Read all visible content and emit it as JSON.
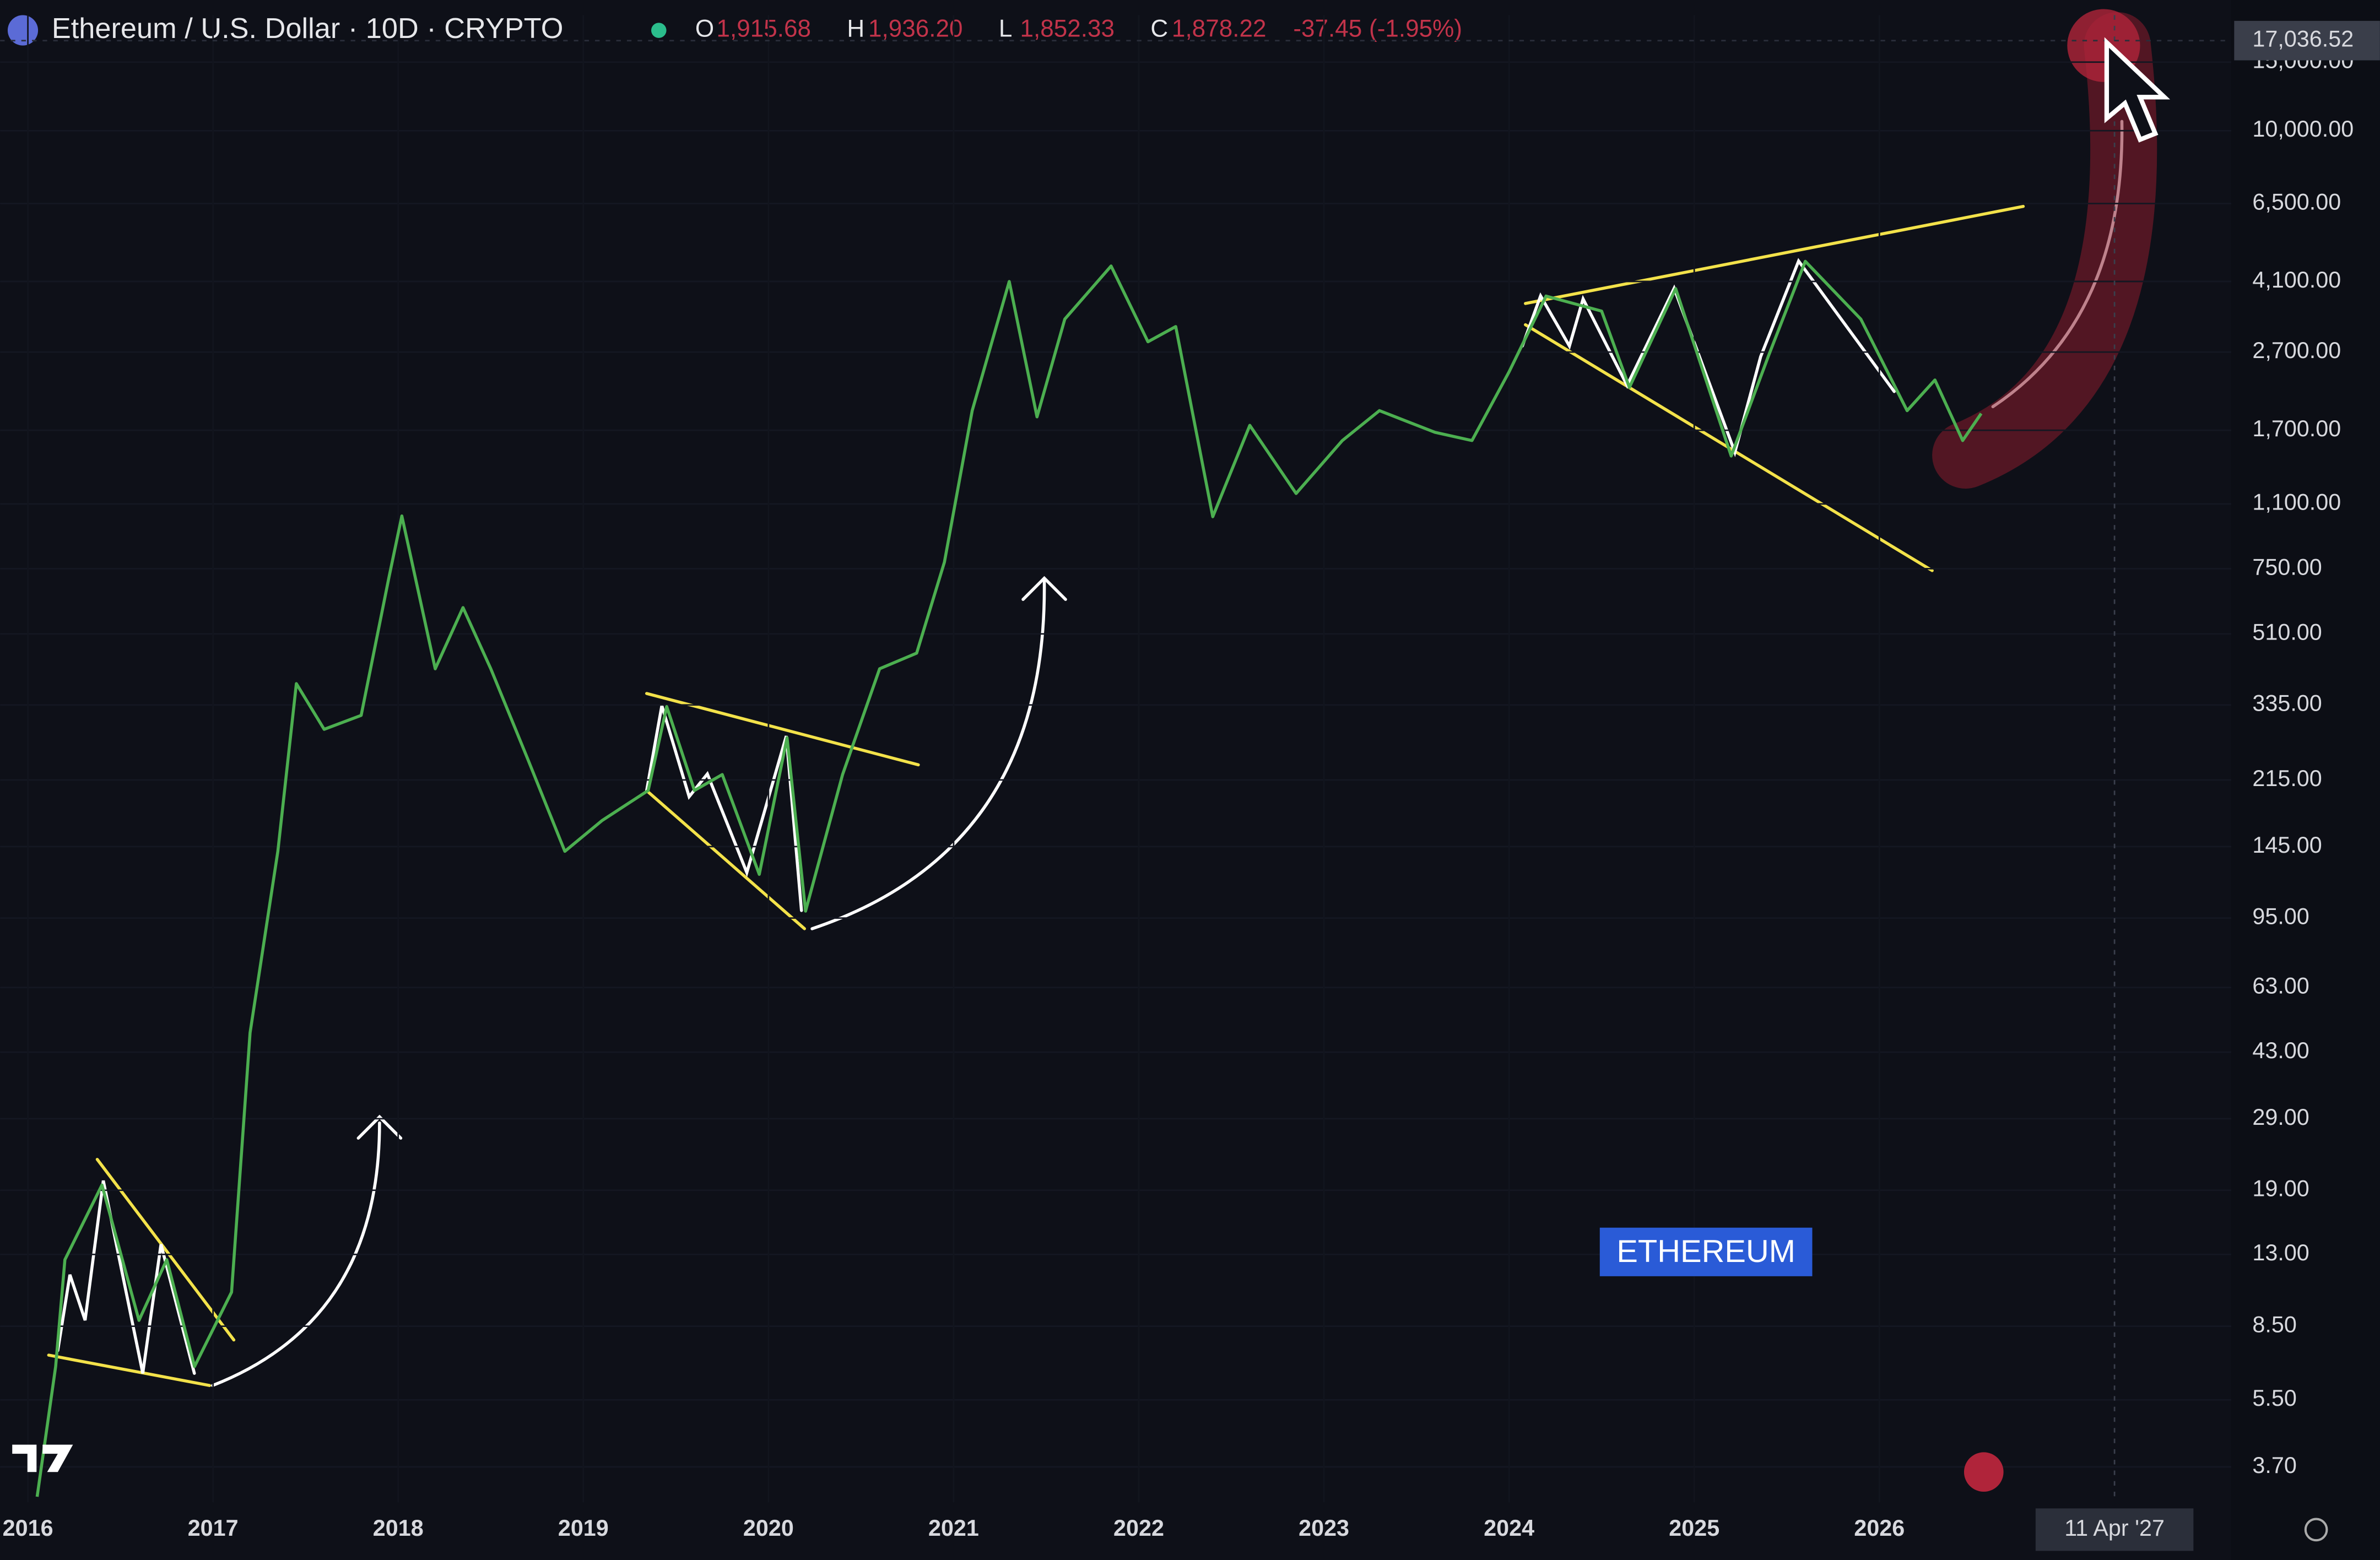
{
  "chart_data": {
    "type": "line",
    "title": "Ethereum / U.S. Dollar · 10D · CRYPTO",
    "ohlc": [
      {
        "name": "O",
        "value": {
          "value": 1915.68,
          "label": "1,915.68"
        }
      },
      {
        "name": "H",
        "value": {
          "value": 1936.2,
          "label": "1,936.20"
        }
      },
      {
        "name": "L",
        "value": {
          "value": 1852.33,
          "label": "1,852.33"
        }
      },
      {
        "name": "C",
        "value": {
          "value": 1878.22,
          "label": "1,878.22"
        }
      }
    ],
    "change": -37.45,
    "change_percent": {
      "value": -1.95,
      "label": "(-1.95%)"
    },
    "annotation": "ETHEREUM",
    "log_scale": true,
    "series": [
      {
        "name": "ETHUSD",
        "color": "#4caf50",
        "x": [
          2016.05,
          2016.15,
          2016.2,
          2016.4,
          2016.6,
          2016.75,
          2016.9,
          2017.1,
          2017.2,
          2017.35,
          2017.45,
          2017.6,
          2017.8,
          2017.95,
          2018.02,
          2018.2,
          2018.35,
          2018.5,
          2018.7,
          2018.9,
          2019.1,
          2019.35,
          2019.45,
          2019.6,
          2019.75,
          2019.95,
          2020.1,
          2020.2,
          2020.4,
          2020.6,
          2020.8,
          2020.95,
          2021.1,
          2021.3,
          2021.45,
          2021.6,
          2021.85,
          2022.05,
          2022.2,
          2022.4,
          2022.6,
          2022.85,
          2023.1,
          2023.3,
          2023.6,
          2023.8,
          2024.0,
          2024.2,
          2024.5,
          2024.65,
          2024.9,
          2025.2,
          2025.4,
          2025.6,
          2025.9,
          2026.15,
          2026.3,
          2026.45,
          2026.55
        ],
        "values": [
          3.1,
          6.7,
          12.6,
          19.6,
          8.8,
          12.6,
          6.7,
          10.4,
          48.2,
          141,
          380,
          290,
          315,
          712,
          1024,
          415,
          596,
          415,
          243,
          141,
          169,
          202,
          332,
          202,
          222,
          123,
          276,
          99,
          222,
          415,
          455,
          780,
          1910,
          4100,
          1840,
          3280,
          4490,
          2870,
          3140,
          1020,
          1750,
          1170,
          1600,
          1910,
          1680,
          1600,
          2400,
          3760,
          3440,
          2190,
          3930,
          1460,
          2630,
          4620,
          3280,
          1910,
          2290,
          1600,
          1878.22
        ]
      }
    ],
    "xlim": [
      2015.85,
      2027.9
    ],
    "xticks": [
      2016,
      2017,
      2018,
      2019,
      2020,
      2021,
      2022,
      2023,
      2024,
      2025,
      2026
    ],
    "ylim": [
      3,
      19800
    ],
    "yticks": [
      {
        "value": 3.7,
        "label": "3.70"
      },
      {
        "value": 5.5,
        "label": "5.50"
      },
      {
        "value": 8.5,
        "label": "8.50"
      },
      {
        "value": 13,
        "label": "13.00"
      },
      {
        "value": 19,
        "label": "19.00"
      },
      {
        "value": 29,
        "label": "29.00"
      },
      {
        "value": 43,
        "label": "43.00"
      },
      {
        "value": 63,
        "label": "63.00"
      },
      {
        "value": 95,
        "label": "95.00"
      },
      {
        "value": 145,
        "label": "145.00"
      },
      {
        "value": 215,
        "label": "215.00"
      },
      {
        "value": 335,
        "label": "335.00"
      },
      {
        "value": 510,
        "label": "510.00"
      },
      {
        "value": 750,
        "label": "750.00"
      },
      {
        "value": 1100,
        "label": "1,100.00"
      },
      {
        "value": 1700,
        "label": "1,700.00"
      },
      {
        "value": 2700,
        "label": "2,700.00"
      },
      {
        "value": 4100,
        "label": "4,100.00"
      },
      {
        "value": 6500,
        "label": "6,500.00"
      },
      {
        "value": 10000,
        "label": "10,000.00"
      },
      {
        "value": 15000,
        "label": "15,000.00"
      }
    ],
    "crosshair_price": {
      "value": 17036.52,
      "label": "17,036.52"
    },
    "crosshair_date": {
      "value": 2027.27,
      "label": "11 Apr '27"
    }
  }
}
